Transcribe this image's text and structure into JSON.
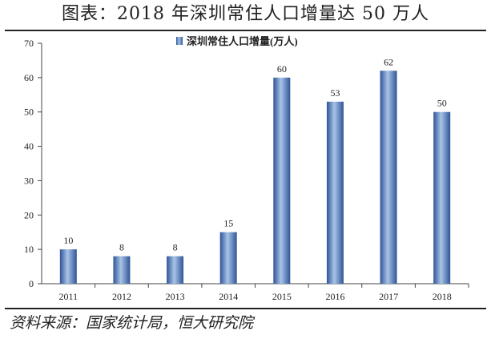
{
  "header": {
    "title": "图表：2018 年深圳常住人口增量达 50 万人"
  },
  "footer": {
    "source": "资料来源：国家统计局，恒大研究院"
  },
  "chart_data": {
    "type": "bar",
    "categories": [
      "2011",
      "2012",
      "2013",
      "2014",
      "2015",
      "2016",
      "2017",
      "2018"
    ],
    "series": [
      {
        "name": "深圳常住人口增量(万人)",
        "values": [
          10,
          8,
          8,
          15,
          60,
          53,
          62,
          50
        ]
      }
    ],
    "data_labels": [
      "10",
      "8",
      "8",
      "15",
      "60",
      "53",
      "62",
      "50"
    ],
    "ylim": [
      0,
      70
    ],
    "yticks": [
      0,
      10,
      20,
      30,
      40,
      50,
      60,
      70
    ],
    "ytick_labels": [
      "0",
      "10",
      "20",
      "30",
      "40",
      "50",
      "60",
      "70"
    ],
    "grid": false,
    "legend_position": "top-center",
    "bar_color": "#4f81bd",
    "bar_color_light": "#a9c4e8",
    "bar_color_dark": "#2f5597"
  }
}
